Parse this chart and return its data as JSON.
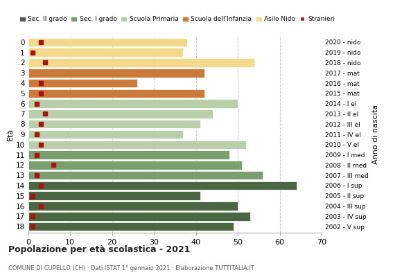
{
  "ages": [
    0,
    1,
    2,
    3,
    4,
    5,
    6,
    7,
    8,
    9,
    10,
    11,
    12,
    13,
    14,
    15,
    16,
    17,
    18
  ],
  "years": [
    "2020 - nido",
    "2019 - nido",
    "2018 - nido",
    "2017 - mat",
    "2016 - mat",
    "2015 - mat",
    "2014 - I el",
    "2013 - II el",
    "2012 - III el",
    "2011 - IV el",
    "2010 - V el",
    "2009 - I med",
    "2008 - II med",
    "2007 - III med",
    "2006 - I sup",
    "2005 - II sup",
    "2004 - III sup",
    "2003 - IV sup",
    "2002 - V sup"
  ],
  "bar_values": [
    38,
    37,
    54,
    42,
    26,
    42,
    50,
    44,
    41,
    37,
    52,
    48,
    51,
    56,
    64,
    41,
    50,
    53,
    49
  ],
  "stranieri": [
    3,
    1,
    4,
    0,
    3,
    3,
    2,
    4,
    3,
    2,
    3,
    2,
    6,
    2,
    3,
    1,
    3,
    1,
    1
  ],
  "bar_colors": [
    "#f5d98b",
    "#f5d98b",
    "#f5d98b",
    "#cc7a3a",
    "#cc7a3a",
    "#cc7a3a",
    "#b8cfaa",
    "#b8cfaa",
    "#b8cfaa",
    "#b8cfaa",
    "#b8cfaa",
    "#7a9e6e",
    "#7a9e6e",
    "#7a9e6e",
    "#4a6741",
    "#4a6741",
    "#4a6741",
    "#4a6741",
    "#4a6741"
  ],
  "legend_labels": [
    "Sec. II grado",
    "Sec. I grado",
    "Scuola Primaria",
    "Scuola dell'Infanzia",
    "Asilo Nido",
    "Stranieri"
  ],
  "legend_colors": [
    "#4a6741",
    "#7a9e6e",
    "#b8cfaa",
    "#cc7a3a",
    "#f5d98b",
    "#aa1111"
  ],
  "stranieri_color": "#aa1111",
  "title": "Popolazione per età scolastica - 2021",
  "subtitle": "COMUNE DI CUPELLO (CH) · Dati ISTAT 1° gennaio 2021 · Elaborazione TUTTITALIA.IT",
  "ylabel_left": "Età",
  "ylabel_right": "Anno di nascita",
  "xlim": [
    0,
    70
  ],
  "xticks": [
    0,
    10,
    20,
    30,
    40,
    50,
    60,
    70
  ],
  "bg_color": "#ffffff",
  "grid_color": "#cccccc"
}
